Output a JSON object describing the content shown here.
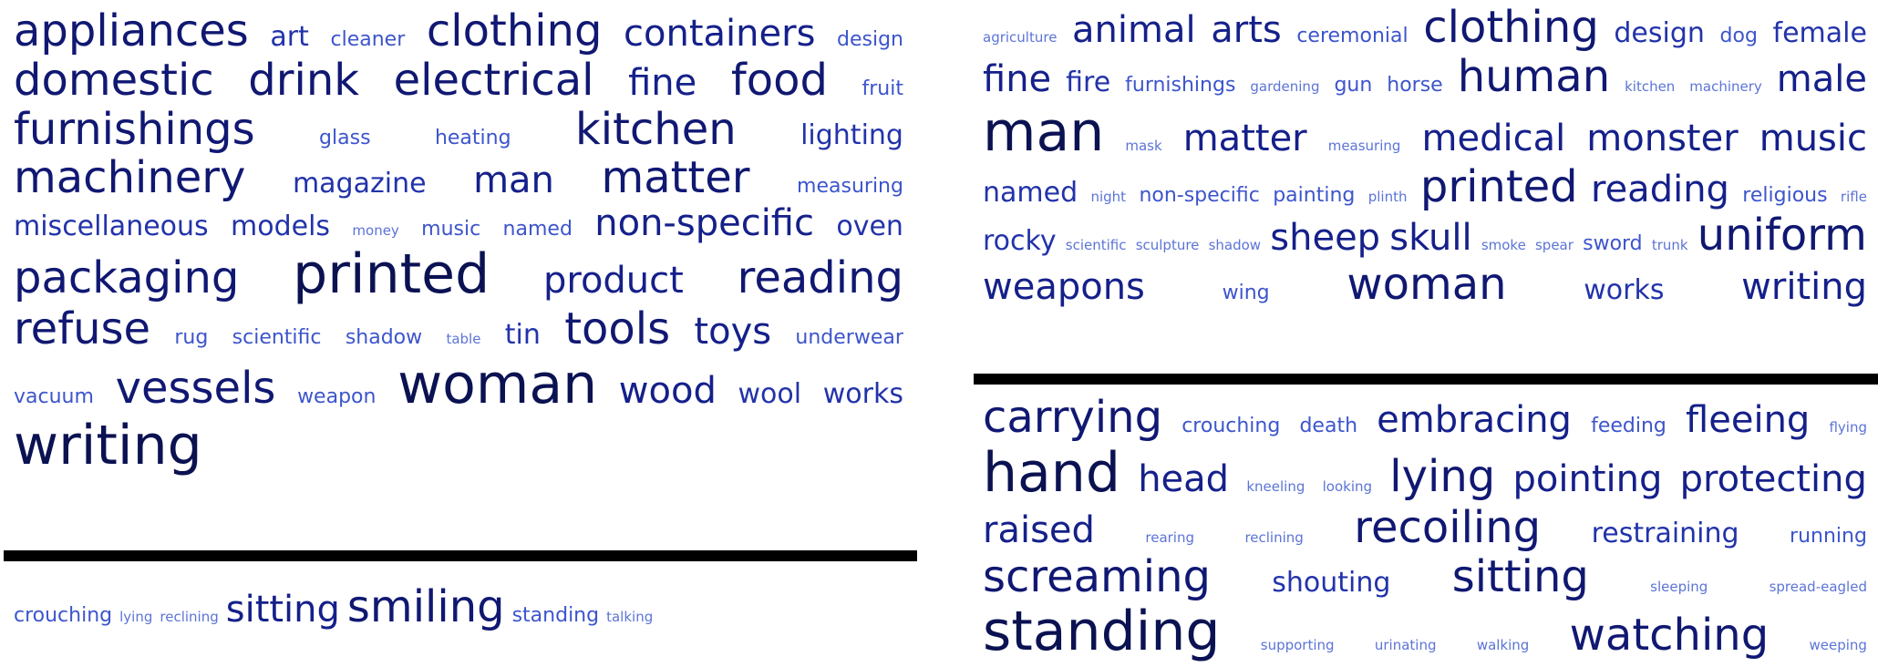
{
  "clouds": [
    {
      "id": "cloud-a",
      "words": [
        {
          "t": "appliances",
          "s": 5
        },
        {
          "t": "art",
          "s": 3
        },
        {
          "t": "cleaner",
          "s": 2
        },
        {
          "t": "clothing",
          "s": 5
        },
        {
          "t": "containers",
          "s": 4
        },
        {
          "t": "design",
          "s": 2
        },
        {
          "t": "domestic",
          "s": 5
        },
        {
          "t": "drink",
          "s": 5
        },
        {
          "t": "electrical",
          "s": 5
        },
        {
          "t": "fine",
          "s": 4
        },
        {
          "t": "food",
          "s": 5
        },
        {
          "t": "fruit",
          "s": 2
        },
        {
          "t": "furnishings",
          "s": 5
        },
        {
          "t": "glass",
          "s": 2
        },
        {
          "t": "heating",
          "s": 2
        },
        {
          "t": "kitchen",
          "s": 5
        },
        {
          "t": "lighting",
          "s": 3
        },
        {
          "t": "machinery",
          "s": 5
        },
        {
          "t": "magazine",
          "s": 3
        },
        {
          "t": "man",
          "s": 4
        },
        {
          "t": "matter",
          "s": 5
        },
        {
          "t": "measuring",
          "s": 2
        },
        {
          "t": "miscellaneous",
          "s": 3
        },
        {
          "t": "models",
          "s": 3
        },
        {
          "t": "money",
          "s": 1
        },
        {
          "t": "music",
          "s": 2
        },
        {
          "t": "named",
          "s": 2
        },
        {
          "t": "non-specific",
          "s": 4
        },
        {
          "t": "oven",
          "s": 3
        },
        {
          "t": "packaging",
          "s": 5
        },
        {
          "t": "printed",
          "s": 6
        },
        {
          "t": "product",
          "s": 4
        },
        {
          "t": "reading",
          "s": 5
        },
        {
          "t": "refuse",
          "s": 5
        },
        {
          "t": "rug",
          "s": 2
        },
        {
          "t": "scientific",
          "s": 2
        },
        {
          "t": "shadow",
          "s": 2
        },
        {
          "t": "table",
          "s": 1
        },
        {
          "t": "tin",
          "s": 3
        },
        {
          "t": "tools",
          "s": 5
        },
        {
          "t": "toys",
          "s": 4
        },
        {
          "t": "underwear",
          "s": 2
        },
        {
          "t": "vacuum",
          "s": 2
        },
        {
          "t": "vessels",
          "s": 5
        },
        {
          "t": "weapon",
          "s": 2
        },
        {
          "t": "woman",
          "s": 6
        },
        {
          "t": "wood",
          "s": 4
        },
        {
          "t": "wool",
          "s": 3
        },
        {
          "t": "works",
          "s": 3
        },
        {
          "t": "writing",
          "s": 6
        }
      ]
    },
    {
      "id": "cloud-b",
      "words": [
        {
          "t": "crouching",
          "s": 2
        },
        {
          "t": "lying",
          "s": 1
        },
        {
          "t": "reclining",
          "s": 1
        },
        {
          "t": "sitting",
          "s": 4
        },
        {
          "t": "smiling",
          "s": 5
        },
        {
          "t": "standing",
          "s": 2
        },
        {
          "t": "talking",
          "s": 1
        }
      ]
    },
    {
      "id": "cloud-c",
      "words": [
        {
          "t": "agriculture",
          "s": 1
        },
        {
          "t": "animal",
          "s": 4
        },
        {
          "t": "arts",
          "s": 4
        },
        {
          "t": "ceremonial",
          "s": 2
        },
        {
          "t": "clothing",
          "s": 5
        },
        {
          "t": "design",
          "s": 3
        },
        {
          "t": "dog",
          "s": 2
        },
        {
          "t": "female",
          "s": 3
        },
        {
          "t": "fine",
          "s": 4
        },
        {
          "t": "fire",
          "s": 3
        },
        {
          "t": "furnishings",
          "s": 2
        },
        {
          "t": "gardening",
          "s": 1
        },
        {
          "t": "gun",
          "s": 2
        },
        {
          "t": "horse",
          "s": 2
        },
        {
          "t": "human",
          "s": 5
        },
        {
          "t": "kitchen",
          "s": 1
        },
        {
          "t": "machinery",
          "s": 1
        },
        {
          "t": "male",
          "s": 4
        },
        {
          "t": "man",
          "s": 6
        },
        {
          "t": "mask",
          "s": 1
        },
        {
          "t": "matter",
          "s": 4
        },
        {
          "t": "measuring",
          "s": 1
        },
        {
          "t": "medical",
          "s": 4
        },
        {
          "t": "monster",
          "s": 4
        },
        {
          "t": "music",
          "s": 4
        },
        {
          "t": "named",
          "s": 3
        },
        {
          "t": "night",
          "s": 1
        },
        {
          "t": "non-specific",
          "s": 2
        },
        {
          "t": "painting",
          "s": 2
        },
        {
          "t": "plinth",
          "s": 1
        },
        {
          "t": "printed",
          "s": 5
        },
        {
          "t": "reading",
          "s": 4
        },
        {
          "t": "religious",
          "s": 2
        },
        {
          "t": "rifle",
          "s": 1
        },
        {
          "t": "rocky",
          "s": 3
        },
        {
          "t": "scientific",
          "s": 1
        },
        {
          "t": "sculpture",
          "s": 1
        },
        {
          "t": "shadow",
          "s": 1
        },
        {
          "t": "sheep",
          "s": 4
        },
        {
          "t": "skull",
          "s": 4
        },
        {
          "t": "smoke",
          "s": 1
        },
        {
          "t": "spear",
          "s": 1
        },
        {
          "t": "sword",
          "s": 2
        },
        {
          "t": "trunk",
          "s": 1
        },
        {
          "t": "uniform",
          "s": 5
        },
        {
          "t": "weapons",
          "s": 4
        },
        {
          "t": "wing",
          "s": 2
        },
        {
          "t": "woman",
          "s": 5
        },
        {
          "t": "works",
          "s": 3
        },
        {
          "t": "writing",
          "s": 4
        }
      ]
    },
    {
      "id": "cloud-d",
      "words": [
        {
          "t": "carrying",
          "s": 5
        },
        {
          "t": "crouching",
          "s": 2
        },
        {
          "t": "death",
          "s": 2
        },
        {
          "t": "embracing",
          "s": 4
        },
        {
          "t": "feeding",
          "s": 2
        },
        {
          "t": "fleeing",
          "s": 4
        },
        {
          "t": "flying",
          "s": 1
        },
        {
          "t": "hand",
          "s": 6
        },
        {
          "t": "head",
          "s": 4
        },
        {
          "t": "kneeling",
          "s": 1
        },
        {
          "t": "looking",
          "s": 1
        },
        {
          "t": "lying",
          "s": 5
        },
        {
          "t": "pointing",
          "s": 4
        },
        {
          "t": "protecting",
          "s": 4
        },
        {
          "t": "raised",
          "s": 4
        },
        {
          "t": "rearing",
          "s": 1
        },
        {
          "t": "reclining",
          "s": 1
        },
        {
          "t": "recoiling",
          "s": 5
        },
        {
          "t": "restraining",
          "s": 3
        },
        {
          "t": "running",
          "s": 2
        },
        {
          "t": "screaming",
          "s": 5
        },
        {
          "t": "shouting",
          "s": 3
        },
        {
          "t": "sitting",
          "s": 5
        },
        {
          "t": "sleeping",
          "s": 1
        },
        {
          "t": "spread-eagled",
          "s": 1
        },
        {
          "t": "standing",
          "s": 6
        },
        {
          "t": "supporting",
          "s": 1
        },
        {
          "t": "urinating",
          "s": 1
        },
        {
          "t": "walking",
          "s": 1
        },
        {
          "t": "watching",
          "s": 5
        },
        {
          "t": "weeping",
          "s": 1
        }
      ]
    }
  ]
}
